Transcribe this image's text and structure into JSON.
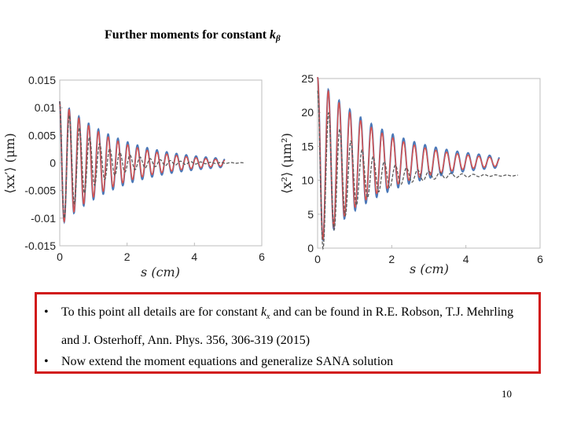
{
  "slide": {
    "title_main": "Further moments for constant ",
    "title_k": "k",
    "title_sub": "β",
    "page_number": "10"
  },
  "notes": {
    "bullet_symbol": "•",
    "bullet1_pre": "To this point all details are for constant ",
    "bullet1_k": "k",
    "bullet1_sub": "x",
    "bullet1_post": " and can be found in R.E. Robson, T.J. Mehrling and J. Osterhoff, Ann. Phys. 356, 306-319 (2015)",
    "bullet2": "Now extend the moment equations and generalize SANA solution"
  },
  "colors": {
    "series_blue": "#4a78b8",
    "series_red": "#d9534f",
    "series_dashed": "#5a5a5a",
    "box_border": "#d11a1a"
  },
  "chart_data": [
    {
      "type": "line",
      "xlabel": "s (cm)",
      "ylabel": "⟨xx′⟩ (μm)",
      "xlim": [
        0,
        6
      ],
      "ylim": [
        -0.015,
        0.015
      ],
      "x_ticks": [
        "0",
        "2",
        "4",
        "6"
      ],
      "y_ticks": [
        "0.015",
        "0.01",
        "0.005",
        "0",
        "-0.005",
        "-0.01",
        "-0.015"
      ],
      "grid": false,
      "series": [
        {
          "style": "solid-blue",
          "x_end": 4.9,
          "period": 0.29,
          "amplitude": 0.0115,
          "decay": 0.55,
          "offset": 0.0,
          "phase": 0.25
        },
        {
          "style": "solid-red",
          "x_end": 4.9,
          "period": 0.29,
          "amplitude": 0.0115,
          "decay": 0.62,
          "offset": 0.0,
          "phase": 0.25
        },
        {
          "style": "dashed",
          "x_end": 5.5,
          "period": 0.3,
          "amplitude": 0.0115,
          "decay": 1.0,
          "offset": 0.0,
          "phase": 0.25
        }
      ]
    },
    {
      "type": "line",
      "xlabel": "s (cm)",
      "ylabel": "⟨x²⟩ (μm²)",
      "xlim": [
        0,
        6
      ],
      "ylim": [
        0,
        25
      ],
      "x_ticks": [
        "0",
        "2",
        "4",
        "6"
      ],
      "y_ticks": [
        "25",
        "20",
        "15",
        "10",
        "5",
        "0"
      ],
      "grid": false,
      "series": [
        {
          "style": "solid-blue",
          "x_end": 4.9,
          "period": 0.29,
          "amplitude": 12.5,
          "decay": 0.55,
          "offset": 12.7,
          "phase": 0.0
        },
        {
          "style": "solid-red",
          "x_end": 4.9,
          "period": 0.29,
          "amplitude": 12.5,
          "decay": 0.62,
          "offset": 12.7,
          "phase": 0.0
        },
        {
          "style": "dashed",
          "x_end": 5.4,
          "period": 0.3,
          "amplitude": 12.5,
          "decay": 1.0,
          "offset": 10.7,
          "phase": 0.0
        }
      ]
    }
  ]
}
